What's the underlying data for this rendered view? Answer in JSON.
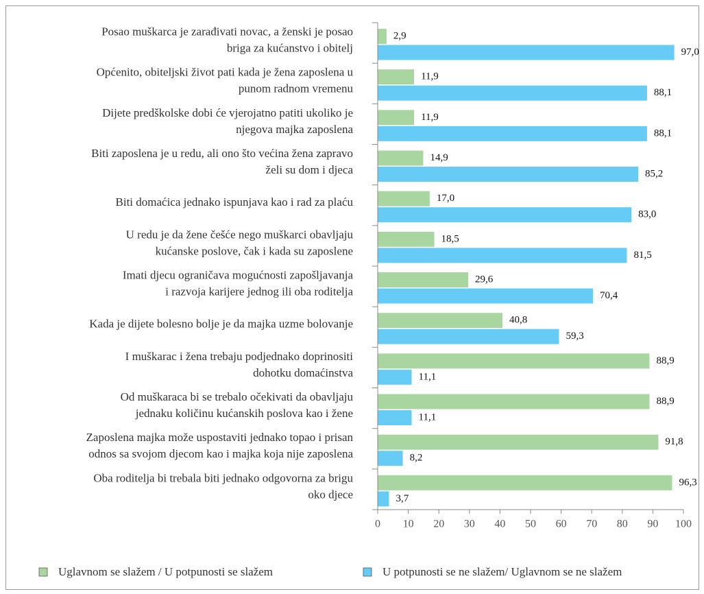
{
  "chart_data": {
    "type": "hbar",
    "categories": [
      [
        "Posao muškarca je zarađivati novac, a ženski je posao",
        "briga za kućanstvo i obitelj"
      ],
      [
        "Općenito, obiteljski život pati kada je žena zaposlena u",
        "punom radnom vremenu"
      ],
      [
        "Dijete predškolske dobi će vjerojatno patiti ukoliko je",
        "njegova majka zaposlena"
      ],
      [
        "Biti zaposlena je u redu, ali ono što većina žena zapravo",
        "želi su dom i djeca"
      ],
      [
        "Biti domaćica jednako ispunjava kao i rad za plaću"
      ],
      [
        "U redu je da žene češće nego muškarci obavljaju",
        "kućanske poslove, čak i kada su zaposlene"
      ],
      [
        "Imati djecu ograničava mogućnosti zapošljavanja",
        "i razvoja karijere jednog ili oba roditelja"
      ],
      [
        "Kada je dijete bolesno bolje je da majka uzme bolovanje"
      ],
      [
        "I muškarac i žena trebaju podjednako doprinositi",
        "dohotku domaćinstva"
      ],
      [
        "Od muškaraca bi se trebalo očekivati da obavljaju",
        "jednaku količinu kućanskih poslova kao i žene"
      ],
      [
        "Zaposlena majka može uspostaviti jednako topao i prisan",
        "odnos sa svojom djecom kao i majka koja nije zaposlena"
      ],
      [
        "Oba roditelja bi trebala biti jednako odgovorna za brigu",
        "oko djece"
      ]
    ],
    "series": [
      {
        "name": "Uglavnom se slažem / U potpunosti se slažem",
        "color": "#a9d5a0",
        "values": [
          2.9,
          11.9,
          11.9,
          14.9,
          17.0,
          18.5,
          29.6,
          40.8,
          88.9,
          88.9,
          91.8,
          96.3
        ],
        "value_labels": [
          "2,9",
          "11,9",
          "11,9",
          "14,9",
          "17,0",
          "18,5",
          "29,6",
          "40,8",
          "88,9",
          "88,9",
          "91,8",
          "96,3"
        ]
      },
      {
        "name": "U potpunosti se ne slažem/ Uglavnom se ne slažem",
        "color": "#66ccf5",
        "values": [
          97.0,
          88.1,
          88.1,
          85.2,
          83.0,
          81.5,
          70.4,
          59.3,
          11.1,
          11.1,
          8.2,
          3.7
        ],
        "value_labels": [
          "97,0",
          "88,1",
          "88,1",
          "85,2",
          "83,0",
          "81,5",
          "70,4",
          "59,3",
          "11,1",
          "11,1",
          "8,2",
          "3,7"
        ]
      }
    ],
    "xlim": [
      0,
      100
    ],
    "xticks": [
      0,
      10,
      20,
      30,
      40,
      50,
      60,
      70,
      80,
      90,
      100
    ],
    "legend": "bottom"
  }
}
